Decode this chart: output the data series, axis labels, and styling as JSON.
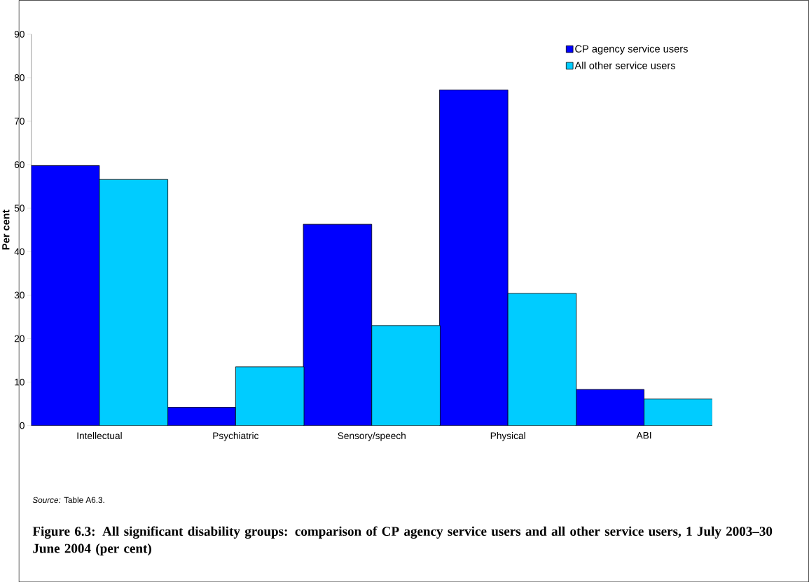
{
  "chart_data": {
    "type": "bar",
    "title": "Figure 6.3: All significant disability groups: comparison of CP agency service users and all other service users, 1 July 2003–30 June 2004 (per cent)",
    "ylabel": "Per cent",
    "categories": [
      "Intellectual",
      "Psychiatric",
      "Sensory/speech",
      "Physical",
      "ABI"
    ],
    "series": [
      {
        "name": "CP agency service users",
        "color": "#0000ff",
        "values": [
          59.8,
          4.2,
          46.3,
          77.2,
          8.3
        ]
      },
      {
        "name": "All other service users",
        "color": "#00ccff",
        "values": [
          56.6,
          13.5,
          23.0,
          30.4,
          6.1
        ]
      }
    ],
    "ylim": [
      0,
      90
    ],
    "yticks": [
      0,
      10,
      20,
      30,
      40,
      50,
      60,
      70,
      80,
      90
    ],
    "legend": "top right",
    "annotations": [
      "*Source:* Table A6.3."
    ]
  }
}
